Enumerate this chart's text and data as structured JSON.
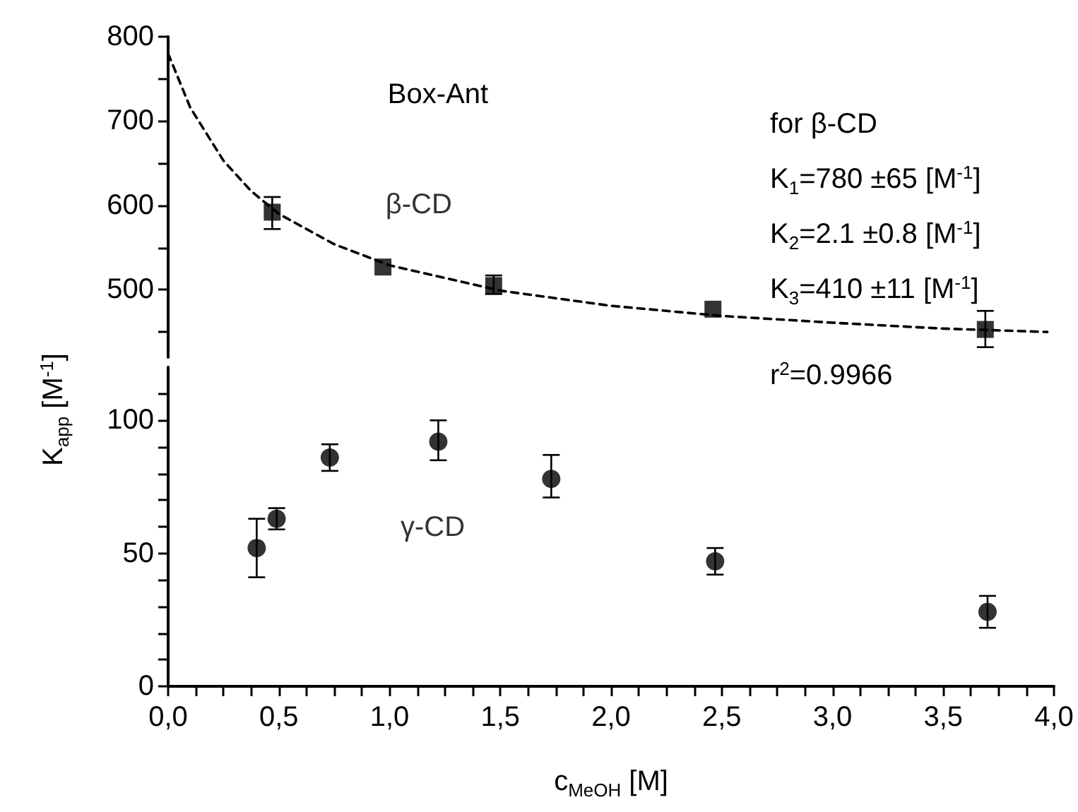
{
  "chart_data": [
    {
      "type": "scatter",
      "tick_labels": "y",
      "xlim": [
        0,
        4
      ],
      "ylim": [
        420,
        800
      ],
      "yticks": [
        {
          "value": 450,
          "label": null
        },
        500,
        {
          "value": 550,
          "label": null
        },
        600,
        {
          "value": 650,
          "label": null
        },
        700,
        {
          "value": 750,
          "label": null
        },
        800
      ],
      "annotations": [
        "Box-Ant",
        "for β-CD",
        "K$_{1}$=780 ±65 [M$^{-1}$]",
        "K$_{2}$=2.1 ±0.8 [M$^{-1}$]",
        "K$_{3}$=410 ±11 [M$^{-1}$]",
        "r$^{2}$=0.9966"
      ],
      "series": [
        {
          "name": "β-CD",
          "color": "#000000",
          "marker": "square",
          "x": [
            0.47,
            0.97,
            1.47,
            2.46,
            3.69
          ],
          "values": [
            592,
            527,
            505,
            477,
            453
          ],
          "errors": [
            [
              572,
              610
            ],
            null,
            [
              495,
              517
            ],
            null,
            [
              432,
              475
            ]
          ]
        },
        {
          "type": "line",
          "color": "#000000",
          "marker": "none",
          "line_style": "dashed",
          "x": [
            0,
            0.1,
            0.25,
            0.375,
            0.5,
            0.75,
            1,
            1.5,
            2,
            2.5,
            3,
            3.5,
            3.97
          ],
          "values": [
            780,
            716,
            653,
            617,
            590,
            554,
            529,
            499,
            481,
            469,
            461,
            454,
            450
          ]
        }
      ]
    },
    {
      "type": "scatter",
      "xlabel": "c$_{MeOH}$ [M]",
      "ylabel": "K$_{app}$ [M$^{-1}$]",
      "xlim": [
        0,
        4
      ],
      "ylim": [
        0,
        120
      ],
      "xticks": [
        {
          "value": 0,
          "label": "0,0"
        },
        {
          "value": 0.125,
          "label": null
        },
        {
          "value": 0.25,
          "label": null
        },
        {
          "value": 0.375,
          "label": null
        },
        {
          "value": 0.5,
          "label": "0,5"
        },
        {
          "value": 0.625,
          "label": null
        },
        {
          "value": 0.75,
          "label": null
        },
        {
          "value": 0.875,
          "label": null
        },
        {
          "value": 1,
          "label": "1,0"
        },
        {
          "value": 1.125,
          "label": null
        },
        {
          "value": 1.25,
          "label": null
        },
        {
          "value": 1.375,
          "label": null
        },
        {
          "value": 1.5,
          "label": "1,5"
        },
        {
          "value": 1.625,
          "label": null
        },
        {
          "value": 1.75,
          "label": null
        },
        {
          "value": 1.875,
          "label": null
        },
        {
          "value": 2,
          "label": "2,0"
        },
        {
          "value": 2.125,
          "label": null
        },
        {
          "value": 2.25,
          "label": null
        },
        {
          "value": 2.375,
          "label": null
        },
        {
          "value": 2.5,
          "label": "2,5"
        },
        {
          "value": 2.625,
          "label": null
        },
        {
          "value": 2.75,
          "label": null
        },
        {
          "value": 2.875,
          "label": null
        },
        {
          "value": 3,
          "label": "3,0"
        },
        {
          "value": 3.125,
          "label": null
        },
        {
          "value": 3.25,
          "label": null
        },
        {
          "value": 3.375,
          "label": null
        },
        {
          "value": 3.5,
          "label": "3,5"
        },
        {
          "value": 3.625,
          "label": null
        },
        {
          "value": 3.75,
          "label": null
        },
        {
          "value": 3.875,
          "label": null
        },
        {
          "value": 4,
          "label": "4,0"
        }
      ],
      "yticks": [
        0,
        {
          "value": 10,
          "label": null
        },
        {
          "value": 20,
          "label": null
        },
        {
          "value": 30,
          "label": null
        },
        {
          "value": 40,
          "label": null
        },
        50,
        {
          "value": 60,
          "label": null
        },
        {
          "value": 70,
          "label": null
        },
        {
          "value": 80,
          "label": null
        },
        {
          "value": 90,
          "label": null
        },
        100,
        {
          "value": 110,
          "label": null
        }
      ],
      "series": [
        {
          "name": "γ-CD",
          "color": "#000000",
          "marker": "circle",
          "x": [
            0.4,
            0.49,
            0.73,
            1.22,
            1.73,
            2.47,
            3.7
          ],
          "values": [
            52,
            63,
            86,
            92,
            78,
            47,
            28
          ],
          "errors": [
            [
              41,
              63
            ],
            [
              59,
              67
            ],
            [
              81,
              91
            ],
            [
              85,
              100
            ],
            [
              71,
              87
            ],
            [
              42,
              52
            ],
            [
              22,
              34
            ]
          ]
        }
      ]
    }
  ]
}
